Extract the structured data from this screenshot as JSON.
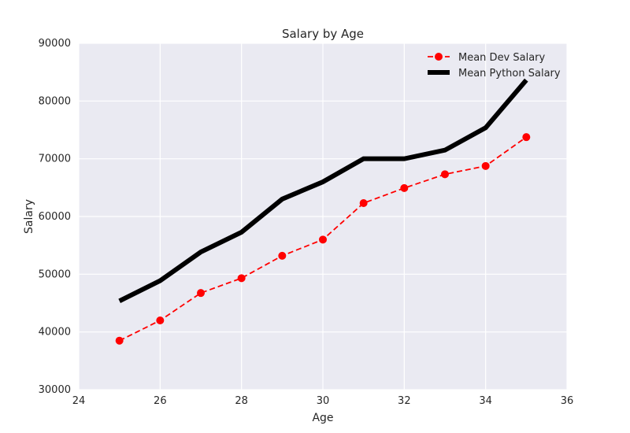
{
  "chart_data": {
    "type": "line",
    "title": "Salary by Age",
    "xlabel": "Age",
    "ylabel": "Salary",
    "xlim": [
      24,
      36
    ],
    "ylim": [
      30000,
      90000
    ],
    "xticks": [
      24,
      26,
      28,
      30,
      32,
      34,
      36
    ],
    "yticks": [
      30000,
      40000,
      50000,
      60000,
      70000,
      80000,
      90000
    ],
    "grid": true,
    "legend_position": "top-right",
    "background_color": "#eaeaf2",
    "grid_color": "#ffffff",
    "x": [
      25,
      26,
      27,
      28,
      29,
      30,
      31,
      32,
      33,
      34,
      35
    ],
    "series": [
      {
        "name": "Mean Dev Salary",
        "color": "#ff0000",
        "line_style": "dashed",
        "marker": "circle",
        "values": [
          38496,
          42000,
          46752,
          49320,
          53200,
          56000,
          62316,
          64928,
          67317,
          68748,
          73752
        ]
      },
      {
        "name": "Mean Python Salary",
        "color": "#000000",
        "line_style": "solid-thick",
        "marker": "none",
        "values": [
          45372,
          48876,
          53850,
          57287,
          63016,
          65998,
          70003,
          70000,
          71496,
          75370,
          83640
        ]
      }
    ]
  }
}
